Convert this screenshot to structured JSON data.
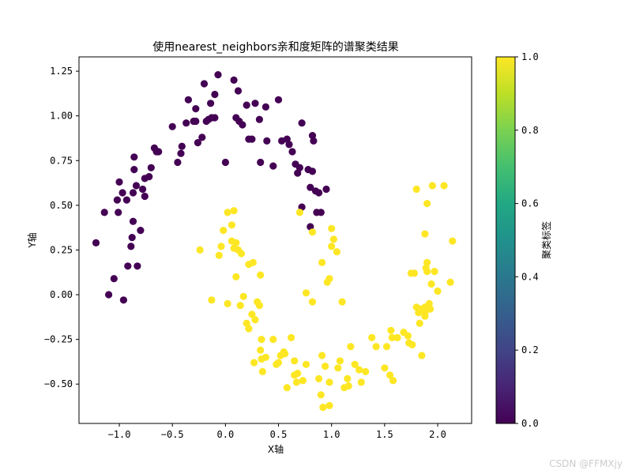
{
  "chart_data": {
    "type": "scatter",
    "title": "使用nearest_neighbors亲和度矩阵的谱聚类结果",
    "xlabel": "X轴",
    "ylabel": "Y轴",
    "xlim": [
      -1.38,
      2.32
    ],
    "ylim": [
      -0.72,
      1.33
    ],
    "xticks": [
      -1.0,
      -0.5,
      0.0,
      0.5,
      1.0,
      1.5,
      2.0
    ],
    "xtick_labels": [
      "−1.0",
      "−0.5",
      "0.0",
      "0.5",
      "1.0",
      "1.5",
      "2.0"
    ],
    "yticks": [
      -0.5,
      -0.25,
      0.0,
      0.25,
      0.5,
      0.75,
      1.0,
      1.25
    ],
    "ytick_labels": [
      "−0.50",
      "−0.25",
      "0.00",
      "0.25",
      "0.50",
      "0.75",
      "1.00",
      "1.25"
    ],
    "grid": false,
    "colormap": "viridis",
    "colorbar": {
      "label": "聚类标签",
      "range": [
        0.0,
        1.0
      ],
      "ticks": [
        0.0,
        0.2,
        0.4,
        0.6,
        0.8,
        1.0
      ],
      "tick_labels": [
        "0.0",
        "0.2",
        "0.4",
        "0.6",
        "0.8",
        "1.0"
      ]
    },
    "series": [
      {
        "label_value": 0,
        "color": "#440154",
        "points": [
          [
            -1.22,
            0.29
          ],
          [
            -1.14,
            0.46
          ],
          [
            -1.1,
            0.0
          ],
          [
            -1.05,
            0.09
          ],
          [
            -1.02,
            0.53
          ],
          [
            -1.01,
            0.46
          ],
          [
            -1.0,
            0.63
          ],
          [
            -0.97,
            0.57
          ],
          [
            -0.96,
            -0.03
          ],
          [
            -0.93,
            0.53
          ],
          [
            -0.92,
            0.16
          ],
          [
            -0.89,
            0.27
          ],
          [
            -0.88,
            0.32
          ],
          [
            -0.87,
            0.41
          ],
          [
            -0.87,
            0.57
          ],
          [
            -0.86,
            0.7
          ],
          [
            -0.86,
            0.77
          ],
          [
            -0.84,
            0.61
          ],
          [
            -0.83,
            0.16
          ],
          [
            -0.8,
            0.36
          ],
          [
            -0.78,
            0.59
          ],
          [
            -0.76,
            0.55
          ],
          [
            -0.76,
            0.65
          ],
          [
            -0.72,
            0.66
          ],
          [
            -0.7,
            0.71
          ],
          [
            -0.67,
            0.82
          ],
          [
            -0.63,
            0.8
          ],
          [
            -0.65,
            0.8
          ],
          [
            -0.5,
            0.94
          ],
          [
            -0.45,
            0.74
          ],
          [
            -0.42,
            0.79
          ],
          [
            -0.41,
            0.83
          ],
          [
            -0.37,
            0.96
          ],
          [
            -0.35,
            1.09
          ],
          [
            -0.3,
            0.97
          ],
          [
            -0.28,
            0.97
          ],
          [
            -0.28,
            1.04
          ],
          [
            -0.26,
            0.85
          ],
          [
            -0.22,
            0.88
          ],
          [
            -0.2,
            1.18
          ],
          [
            -0.18,
            0.97
          ],
          [
            -0.16,
            0.98
          ],
          [
            -0.14,
            1.07
          ],
          [
            -0.13,
            0.99
          ],
          [
            -0.1,
            1.12
          ],
          [
            -0.1,
            0.99
          ],
          [
            -0.07,
            1.23
          ],
          [
            0.0,
            0.74
          ],
          [
            0.08,
            1.2
          ],
          [
            0.1,
            0.99
          ],
          [
            0.12,
            1.14
          ],
          [
            0.13,
            0.97
          ],
          [
            0.16,
            0.95
          ],
          [
            0.2,
            1.06
          ],
          [
            0.22,
            0.87
          ],
          [
            0.25,
            0.87
          ],
          [
            0.28,
            1.07
          ],
          [
            0.32,
            0.98
          ],
          [
            0.33,
            0.74
          ],
          [
            0.38,
            1.05
          ],
          [
            0.39,
            0.86
          ],
          [
            0.45,
            0.72
          ],
          [
            0.5,
            1.09
          ],
          [
            0.53,
            0.86
          ],
          [
            0.58,
            0.87
          ],
          [
            0.6,
            0.84
          ],
          [
            0.63,
            0.8
          ],
          [
            0.66,
            0.73
          ],
          [
            0.68,
            0.68
          ],
          [
            0.7,
            0.71
          ],
          [
            0.72,
            0.96
          ],
          [
            0.72,
            0.49
          ],
          [
            0.78,
            0.7
          ],
          [
            0.8,
            0.38
          ],
          [
            0.82,
            0.69
          ],
          [
            0.82,
            0.89
          ],
          [
            0.83,
            0.86
          ],
          [
            0.8,
            0.6
          ],
          [
            0.85,
            0.58
          ],
          [
            0.86,
            0.46
          ],
          [
            0.88,
            0.57
          ],
          [
            0.9,
            0.46
          ],
          [
            0.95,
            0.59
          ]
        ]
      },
      {
        "label_value": 1,
        "color": "#fde725",
        "points": [
          [
            -0.24,
            0.25
          ],
          [
            -0.13,
            -0.03
          ],
          [
            -0.06,
            0.22
          ],
          [
            -0.04,
            0.27
          ],
          [
            -0.02,
            0.36
          ],
          [
            0.02,
            0.46
          ],
          [
            0.02,
            -0.05
          ],
          [
            0.06,
            0.3
          ],
          [
            0.06,
            0.39
          ],
          [
            0.08,
            0.26
          ],
          [
            0.08,
            0.47
          ],
          [
            0.1,
            0.1
          ],
          [
            0.1,
            0.29
          ],
          [
            0.12,
            0.25
          ],
          [
            0.14,
            -0.06
          ],
          [
            0.15,
            0.23
          ],
          [
            0.17,
            -0.01
          ],
          [
            0.2,
            -0.16
          ],
          [
            0.22,
            -0.19
          ],
          [
            0.22,
            0.17
          ],
          [
            0.25,
            -0.11
          ],
          [
            0.26,
            0.18
          ],
          [
            0.27,
            -0.38
          ],
          [
            0.28,
            -0.14
          ],
          [
            0.3,
            -0.04
          ],
          [
            0.32,
            -0.06
          ],
          [
            0.33,
            0.11
          ],
          [
            0.33,
            -0.31
          ],
          [
            0.34,
            -0.25
          ],
          [
            0.34,
            -0.36
          ],
          [
            0.35,
            -0.43
          ],
          [
            0.38,
            -0.35
          ],
          [
            0.45,
            -0.25
          ],
          [
            0.48,
            -0.39
          ],
          [
            0.5,
            -0.38
          ],
          [
            0.52,
            -0.34
          ],
          [
            0.55,
            -0.32
          ],
          [
            0.56,
            -0.33
          ],
          [
            0.58,
            -0.52
          ],
          [
            0.62,
            -0.24
          ],
          [
            0.65,
            -0.37
          ],
          [
            0.65,
            -0.45
          ],
          [
            0.67,
            -0.49
          ],
          [
            0.68,
            -0.44
          ],
          [
            0.7,
            0.46
          ],
          [
            0.73,
            -0.48
          ],
          [
            0.76,
            0.01
          ],
          [
            0.76,
            -0.39
          ],
          [
            0.82,
            -0.04
          ],
          [
            0.82,
            0.35
          ],
          [
            0.88,
            -0.47
          ],
          [
            0.9,
            -0.56
          ],
          [
            0.91,
            0.18
          ],
          [
            0.91,
            -0.34
          ],
          [
            0.92,
            -0.63
          ],
          [
            0.94,
            -0.4
          ],
          [
            0.96,
            0.07
          ],
          [
            0.98,
            0.09
          ],
          [
            0.98,
            -0.49
          ],
          [
            0.98,
            -0.62
          ],
          [
            1.0,
            0.27
          ],
          [
            1.0,
            0.37
          ],
          [
            1.02,
            0.31
          ],
          [
            1.05,
            0.24
          ],
          [
            1.06,
            -0.41
          ],
          [
            1.08,
            -0.37
          ],
          [
            1.1,
            -0.04
          ],
          [
            1.12,
            -0.52
          ],
          [
            1.15,
            -0.47
          ],
          [
            1.16,
            -0.51
          ],
          [
            1.18,
            -0.29
          ],
          [
            1.22,
            -0.39
          ],
          [
            1.26,
            -0.42
          ],
          [
            1.28,
            -0.49
          ],
          [
            1.32,
            -0.43
          ],
          [
            1.38,
            -0.24
          ],
          [
            1.42,
            -0.29
          ],
          [
            1.5,
            -0.41
          ],
          [
            1.52,
            -0.29
          ],
          [
            1.55,
            -0.45
          ],
          [
            1.56,
            -0.2
          ],
          [
            1.57,
            -0.24
          ],
          [
            1.58,
            -0.48
          ],
          [
            1.62,
            -0.24
          ],
          [
            1.68,
            -0.21
          ],
          [
            1.72,
            -0.23
          ],
          [
            1.73,
            -0.27
          ],
          [
            1.75,
            0.12
          ],
          [
            1.76,
            -0.28
          ],
          [
            1.78,
            0.12
          ],
          [
            1.8,
            -0.07
          ],
          [
            1.82,
            -0.1
          ],
          [
            1.83,
            -0.16
          ],
          [
            1.85,
            -0.34
          ],
          [
            1.86,
            -0.08
          ],
          [
            1.88,
            0.34
          ],
          [
            1.88,
            -0.07
          ],
          [
            1.88,
            -0.1
          ],
          [
            1.89,
            0.15
          ],
          [
            1.9,
            0.13
          ],
          [
            1.9,
            0.18
          ],
          [
            1.92,
            -0.05
          ],
          [
            1.93,
            -0.08
          ],
          [
            1.94,
            0.06
          ],
          [
            1.97,
            0.13
          ],
          [
            2.0,
            0.02
          ],
          [
            1.95,
            0.61
          ],
          [
            1.9,
            0.51
          ],
          [
            1.8,
            0.59
          ],
          [
            2.06,
            0.61
          ],
          [
            2.12,
            0.07
          ],
          [
            2.14,
            0.3
          ],
          [
            1.88,
            -0.12
          ],
          [
            1.84,
            -0.08
          ]
        ]
      }
    ]
  },
  "watermark": "CSDN @FFMXjy"
}
